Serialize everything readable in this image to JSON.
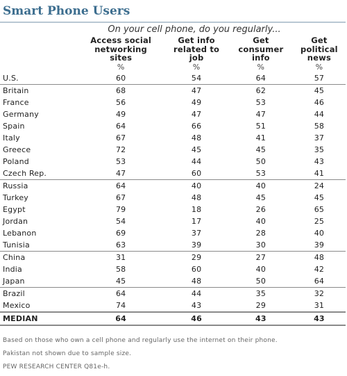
{
  "title": "Smart Phone Users",
  "subtitle": "On your cell phone, do you regularly...",
  "columns": [
    [
      "Access social",
      "networking",
      "sites"
    ],
    [
      "Get info",
      "related to",
      "job"
    ],
    [
      "Get",
      "consumer",
      "info"
    ],
    [
      "Get",
      "political",
      "news"
    ]
  ],
  "unit": "%",
  "chart_data": {
    "type": "table",
    "title": "Smart Phone Users",
    "subtitle": "On your cell phone, do you regularly...",
    "columns": [
      "Access social networking sites",
      "Get info related to job",
      "Get consumer info",
      "Get political news"
    ],
    "unit": "%",
    "rows": [
      {
        "country": "U.S.",
        "values": [
          60,
          54,
          64,
          57
        ]
      },
      {
        "country": "Britain",
        "values": [
          68,
          47,
          62,
          45
        ]
      },
      {
        "country": "France",
        "values": [
          56,
          49,
          53,
          46
        ]
      },
      {
        "country": "Germany",
        "values": [
          49,
          47,
          47,
          44
        ]
      },
      {
        "country": "Spain",
        "values": [
          64,
          66,
          51,
          58
        ]
      },
      {
        "country": "Italy",
        "values": [
          67,
          48,
          41,
          37
        ]
      },
      {
        "country": "Greece",
        "values": [
          72,
          45,
          45,
          35
        ]
      },
      {
        "country": "Poland",
        "values": [
          53,
          44,
          50,
          43
        ]
      },
      {
        "country": "Czech Rep.",
        "values": [
          47,
          60,
          53,
          41
        ]
      },
      {
        "country": "Russia",
        "values": [
          64,
          40,
          40,
          24
        ]
      },
      {
        "country": "Turkey",
        "values": [
          67,
          48,
          45,
          45
        ]
      },
      {
        "country": "Egypt",
        "values": [
          79,
          18,
          26,
          65
        ]
      },
      {
        "country": "Jordan",
        "values": [
          54,
          17,
          40,
          25
        ]
      },
      {
        "country": "Lebanon",
        "values": [
          69,
          37,
          28,
          40
        ]
      },
      {
        "country": "Tunisia",
        "values": [
          63,
          39,
          30,
          39
        ]
      },
      {
        "country": "China",
        "values": [
          31,
          29,
          27,
          48
        ]
      },
      {
        "country": "India",
        "values": [
          58,
          60,
          40,
          42
        ]
      },
      {
        "country": "Japan",
        "values": [
          45,
          48,
          50,
          64
        ]
      },
      {
        "country": "Brazil",
        "values": [
          64,
          44,
          35,
          32
        ]
      },
      {
        "country": "Mexico",
        "values": [
          74,
          43,
          29,
          31
        ]
      }
    ],
    "median": {
      "label": "MEDIAN",
      "values": [
        64,
        46,
        43,
        43
      ]
    }
  },
  "notes": [
    "Based on those who own a cell phone and regularly use the internet on their phone.",
    "Pakistan not shown due to sample size.",
    "PEW RESEARCH CENTER Q81e-h."
  ]
}
